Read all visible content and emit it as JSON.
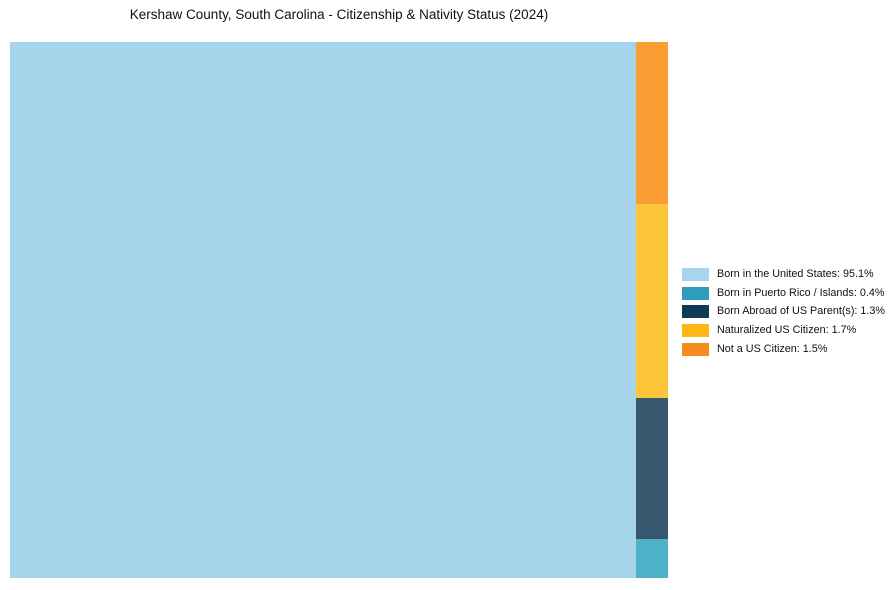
{
  "title": "Kershaw County, South Carolina - Citizenship & Nativity Status (2024)",
  "treemap": {
    "rects": [
      {
        "name": "Born in the United States",
        "value_pct": 95.1,
        "color": "#a6d4ea"
      },
      {
        "name": "Born in Puerto Rico / Islands",
        "value_pct": 0.4,
        "color": "#4db2c8"
      },
      {
        "name": "Born Abroad of US Parent(s)",
        "value_pct": 1.3,
        "color": "#35586f"
      },
      {
        "name": "Naturalized US Citizen",
        "value_pct": 1.7,
        "color": "#fdc63a"
      },
      {
        "name": "Not a US Citizen",
        "value_pct": 1.5,
        "color": "#fa9d33"
      }
    ]
  },
  "legend": {
    "items": [
      {
        "label": "Born in the United States: 95.1%",
        "color": "#a8d5ea"
      },
      {
        "label": "Born in Puerto Rico / Islands: 0.4%",
        "color": "#2d9dbb"
      },
      {
        "label": "Born Abroad of US Parent(s): 1.3%",
        "color": "#0f3a56"
      },
      {
        "label": "Naturalized US Citizen: 1.7%",
        "color": "#fdb813"
      },
      {
        "label": "Not a US Citizen: 1.5%",
        "color": "#f68b1f"
      }
    ]
  },
  "chart_data": {
    "type": "treemap",
    "title": "Kershaw County, South Carolina - Citizenship & Nativity Status (2024)",
    "categories": [
      "Born in the United States",
      "Born in Puerto Rico / Islands",
      "Born Abroad of US Parent(s)",
      "Naturalized US Citizen",
      "Not a US Citizen"
    ],
    "values": [
      95.1,
      0.4,
      1.3,
      1.7,
      1.5
    ],
    "unit": "%",
    "legend_position": "right-center",
    "layout_note": "Large left block = Born in the United States; narrow right column stacked top-to-bottom: Not a US Citizen, Naturalized US Citizen, Born Abroad of US Parent(s), Born in Puerto Rico / Islands"
  }
}
